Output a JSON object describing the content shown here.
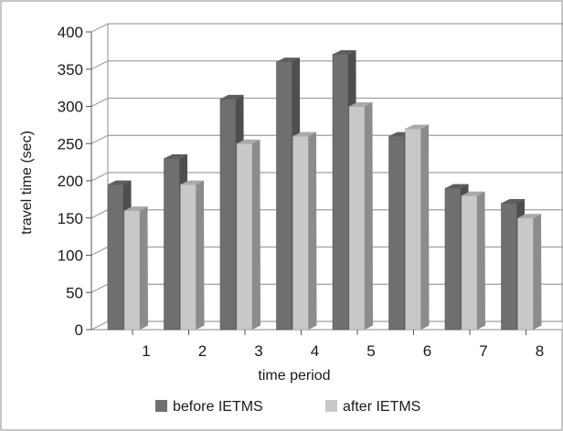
{
  "chart_data": {
    "type": "bar",
    "categories": [
      "1",
      "2",
      "3",
      "4",
      "5",
      "6",
      "7",
      "8"
    ],
    "series": [
      {
        "name": "before IETMS",
        "values": [
          195,
          230,
          310,
          360,
          370,
          260,
          190,
          170
        ],
        "color": "#6f6f6f"
      },
      {
        "name": "after IETMS",
        "values": [
          160,
          195,
          250,
          260,
          300,
          270,
          180,
          150
        ],
        "color": "#c8c8c8"
      }
    ],
    "title": "",
    "xlabel": "time period",
    "ylabel": "travel time (sec)",
    "ylim": [
      0,
      400
    ],
    "yticks": [
      "0",
      "50",
      "100",
      "150",
      "200",
      "250",
      "300",
      "350",
      "400"
    ],
    "grid": true,
    "legend": "bottom",
    "style": "3d"
  }
}
